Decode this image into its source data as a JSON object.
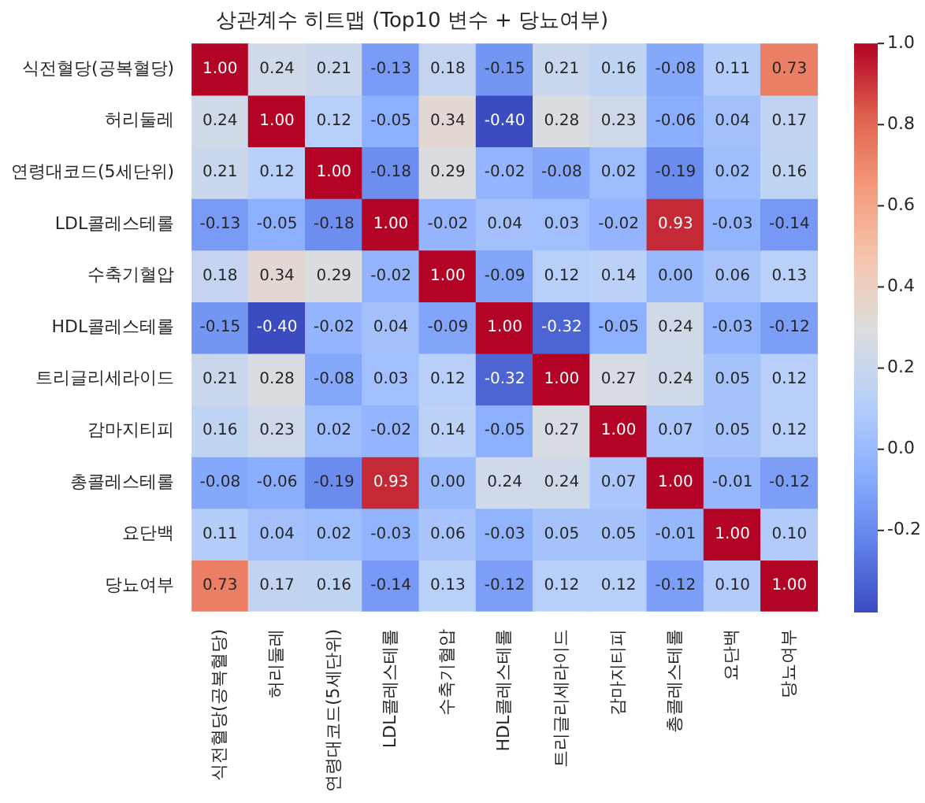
{
  "chart_data": {
    "type": "heatmap",
    "title": "상관계수 히트맵 (Top10 변수 + 당뇨여부)",
    "categories": [
      "식전혈당(공복혈당)",
      "허리둘레",
      "연령대코드(5세단위)",
      "LDL콜레스테롤",
      "수축기혈압",
      "HDL콜레스테롤",
      "트리글리세라이드",
      "감마지티피",
      "총콜레스테롤",
      "요단백",
      "당뇨여부"
    ],
    "y_categories": [
      "식전혈당(공복혈당)",
      "허리둘레",
      "연령대코드(5세단위)",
      "LDL콜레스테롤",
      "수축기혈압",
      "HDL콜레스테롤",
      "트리글리세라이드",
      "감마지티피",
      "총콜레스테롤",
      "요단백",
      "당뇨여부"
    ],
    "cells": [
      [
        1.0,
        0.24,
        0.21,
        -0.13,
        0.18,
        -0.15,
        0.21,
        0.16,
        -0.08,
        0.11,
        0.73
      ],
      [
        0.24,
        1.0,
        0.12,
        -0.05,
        0.34,
        -0.4,
        0.28,
        0.23,
        -0.06,
        0.04,
        0.17
      ],
      [
        0.21,
        0.12,
        1.0,
        -0.18,
        0.29,
        -0.02,
        -0.08,
        0.02,
        -0.19,
        0.02,
        0.16
      ],
      [
        -0.13,
        -0.05,
        -0.18,
        1.0,
        -0.02,
        0.04,
        0.03,
        -0.02,
        0.93,
        -0.03,
        -0.14
      ],
      [
        0.18,
        0.34,
        0.29,
        -0.02,
        1.0,
        -0.09,
        0.12,
        0.14,
        0.0,
        0.06,
        0.13
      ],
      [
        -0.15,
        -0.4,
        -0.02,
        0.04,
        -0.09,
        1.0,
        -0.32,
        -0.05,
        0.24,
        -0.03,
        -0.12
      ],
      [
        0.21,
        0.28,
        -0.08,
        0.03,
        0.12,
        -0.32,
        1.0,
        0.27,
        0.24,
        0.05,
        0.12
      ],
      [
        0.16,
        0.23,
        0.02,
        -0.02,
        0.14,
        -0.05,
        0.27,
        1.0,
        0.07,
        0.05,
        0.12
      ],
      [
        -0.08,
        -0.06,
        -0.19,
        0.93,
        0.0,
        0.24,
        0.24,
        0.07,
        1.0,
        -0.01,
        -0.12
      ],
      [
        0.11,
        0.04,
        0.02,
        -0.03,
        0.06,
        -0.03,
        0.05,
        0.05,
        -0.01,
        1.0,
        0.1
      ],
      [
        0.73,
        0.17,
        0.16,
        -0.14,
        0.13,
        -0.12,
        0.12,
        0.12,
        -0.12,
        0.1,
        1.0
      ]
    ],
    "cell_labels": [
      [
        "1.00",
        "0.24",
        "0.21",
        "-0.13",
        "0.18",
        "-0.15",
        "0.21",
        "0.16",
        "-0.08",
        "0.11",
        "0.73"
      ],
      [
        "0.24",
        "1.00",
        "0.12",
        "-0.05",
        "0.34",
        "-0.40",
        "0.28",
        "0.23",
        "-0.06",
        "0.04",
        "0.17"
      ],
      [
        "0.21",
        "0.12",
        "1.00",
        "-0.18",
        "0.29",
        "-0.02",
        "-0.08",
        "0.02",
        "-0.19",
        "0.02",
        "0.16"
      ],
      [
        "-0.13",
        "-0.05",
        "-0.18",
        "1.00",
        "-0.02",
        "0.04",
        "0.03",
        "-0.02",
        "0.93",
        "-0.03",
        "-0.14"
      ],
      [
        "0.18",
        "0.34",
        "0.29",
        "-0.02",
        "1.00",
        "-0.09",
        "0.12",
        "0.14",
        "0.00",
        "0.06",
        "0.13"
      ],
      [
        "-0.15",
        "-0.40",
        "-0.02",
        "0.04",
        "-0.09",
        "1.00",
        "-0.32",
        "-0.05",
        "0.24",
        "-0.03",
        "-0.12"
      ],
      [
        "0.21",
        "0.28",
        "-0.08",
        "0.03",
        "0.12",
        "-0.32",
        "1.00",
        "0.27",
        "0.24",
        "0.05",
        "0.12"
      ],
      [
        "0.16",
        "0.23",
        "0.02",
        "-0.02",
        "0.14",
        "-0.05",
        "0.27",
        "1.00",
        "0.07",
        "0.05",
        "0.12"
      ],
      [
        "-0.08",
        "-0.06",
        "-0.19",
        "0.93",
        "0.00",
        "0.24",
        "0.24",
        "0.07",
        "1.00",
        "-0.01",
        "-0.12"
      ],
      [
        "0.11",
        "0.04",
        "0.02",
        "-0.03",
        "0.06",
        "-0.03",
        "0.05",
        "0.05",
        "-0.01",
        "1.00",
        "0.10"
      ],
      [
        "0.73",
        "0.17",
        "0.16",
        "-0.14",
        "0.13",
        "-0.12",
        "0.12",
        "0.12",
        "-0.12",
        "0.10",
        "1.00"
      ]
    ],
    "clim": [
      -0.4,
      1.0
    ],
    "cticks": [
      {
        "value": -0.2,
        "label": "-0.2"
      },
      {
        "value": 0,
        "label": "0.0"
      },
      {
        "value": 0.2,
        "label": "0.2"
      },
      {
        "value": 0.4,
        "label": "0.4"
      },
      {
        "value": 0.6,
        "label": "0.6"
      },
      {
        "value": 0.8,
        "label": "0.8"
      },
      {
        "value": 1.0,
        "label": "1.0"
      }
    ],
    "legend": false
  }
}
